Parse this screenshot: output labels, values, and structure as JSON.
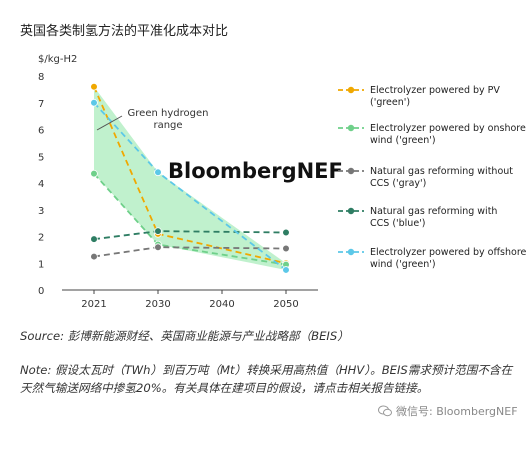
{
  "title": "英国各类制氢方法的平准化成本对比",
  "brand": "BloombergNEF",
  "annotation": "Green hydrogen range",
  "source": "Source: 彭博新能源财经、英国商业能源与产业战略部（BEIS）",
  "note": "Note: 假设太瓦时（TWh）到百万吨（Mt）转换采用高热值（HHV）。BEIS需求预计范围不含在天然气输送网络中掺氢20%。有关具体在建项目的假设，请点击相关报告链接。",
  "watermark": "微信号: BloombergNEF",
  "chart_data": {
    "type": "line",
    "ylabel": "$/kg-H2",
    "categories": [
      "2021",
      "2030",
      "2040",
      "2050"
    ],
    "yticks": [
      0,
      1,
      2,
      3,
      4,
      5,
      6,
      7,
      8
    ],
    "ylim": [
      0,
      8
    ],
    "grid": false,
    "legend_position": "right",
    "series": [
      {
        "name": "Electrolyzer powered by PV ('green')",
        "values": [
          7.6,
          2.1,
          null,
          1.0
        ],
        "color": "#f0a800",
        "green": true
      },
      {
        "name": "Electrolyzer powered by onshore wind ('green')",
        "values": [
          4.35,
          1.7,
          null,
          0.95
        ],
        "color": "#6fd08a",
        "green": true
      },
      {
        "name": "Natural gas reforming without CCS ('gray')",
        "values": [
          1.25,
          1.6,
          null,
          1.55
        ],
        "color": "#777777",
        "green": false
      },
      {
        "name": "Natural gas reforming with CCS ('blue')",
        "values": [
          1.9,
          2.2,
          null,
          2.15
        ],
        "color": "#2e7d63",
        "green": false
      },
      {
        "name": "Electrolyzer powered by offshore wind ('green')",
        "values": [
          7.0,
          4.4,
          null,
          0.75
        ],
        "color": "#5cc8e8",
        "green": true
      }
    ]
  }
}
